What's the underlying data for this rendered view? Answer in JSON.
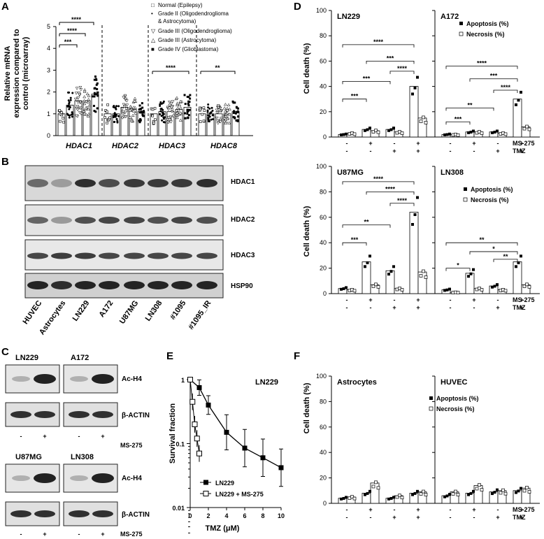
{
  "panels": {
    "A": {
      "letter": "A",
      "ylabel": [
        "Relative mRNA",
        "expression compared to",
        "control (microarray)"
      ],
      "yticks": [
        "0",
        "1",
        "2",
        "3",
        "4",
        "5"
      ],
      "genes": [
        "HDAC1",
        "HDAC2",
        "HDAC3",
        "HDAC8"
      ],
      "legend": [
        {
          "symbol": "□",
          "text": "Normal    (Epilepsy)"
        },
        {
          "symbol": "•",
          "text": "Grade II (Oligodendroglioma"
        },
        {
          "symbol": "",
          "text": "& Astrocytoma)"
        },
        {
          "symbol": "▽",
          "text": "Grade III (Oligodendroglioma)"
        },
        {
          "symbol": "△",
          "text": "Grade III (Astrocytoma)"
        },
        {
          "symbol": "■",
          "text": "Grade IV (Glioblastoma)"
        }
      ],
      "sig": [
        "****",
        "****",
        "***",
        "****",
        "**"
      ]
    },
    "B": {
      "letter": "B",
      "blots": [
        "HDAC1",
        "HDAC2",
        "HDAC3",
        "HSP90"
      ],
      "lanes": [
        "HUVEC",
        "Astrocytes",
        "LN229",
        "A172",
        "U87MG",
        "LN308",
        "#1095",
        "#1095_IR"
      ]
    },
    "C": {
      "letter": "C",
      "cells_top": [
        "LN229",
        "A172"
      ],
      "cells_bottom": [
        "U87MG",
        "LN308"
      ],
      "blots": [
        "Ac-H4",
        "β-ACTIN"
      ],
      "treatment": "MS-275",
      "signs": [
        "-",
        "+"
      ]
    },
    "D": {
      "letter": "D",
      "ylabel": "Cell death (%)",
      "yticks": [
        "0",
        "20",
        "40",
        "60",
        "80",
        "100"
      ],
      "legend": [
        "Apoptosis (%)",
        "Necrosis (%)"
      ],
      "row_labels": [
        "MS-275",
        "TMZ"
      ],
      "ms275": [
        "-",
        "+",
        "-",
        "+"
      ],
      "tmz": [
        "-",
        "-",
        "+",
        "+"
      ]
    },
    "E": {
      "letter": "E",
      "ylabel": "Survival fraction",
      "xlabel": "TMZ (μM)",
      "title": "LN229",
      "yticks": [
        "1",
        "0.1",
        "0.01"
      ],
      "xticks": [
        "0",
        "2",
        "4",
        "6",
        "8",
        "10"
      ],
      "legend": [
        "LN229",
        "LN229 + MS-275"
      ]
    },
    "F": {
      "letter": "F",
      "ylabel": "Cell death (%)",
      "yticks": [
        "0",
        "20",
        "40",
        "60",
        "80",
        "100"
      ],
      "legend": [
        "Apoptosis (%)",
        "Necrosis (%)"
      ],
      "row_labels": [
        "MS-275",
        "TMZ"
      ],
      "ms275": [
        "-",
        "+",
        "-",
        "+"
      ],
      "tmz": [
        "-",
        "-",
        "+",
        "+"
      ]
    }
  },
  "chart_data": [
    {
      "type": "bar",
      "panel": "A",
      "ylabel": "Relative mRNA expression compared to control (microarray)",
      "ylim": [
        0,
        5
      ],
      "categories": [
        "HDAC1",
        "HDAC2",
        "HDAC3",
        "HDAC8"
      ],
      "series": [
        {
          "name": "Normal (Epilepsy)",
          "values": [
            1.0,
            1.0,
            1.0,
            1.0
          ]
        },
        {
          "name": "Grade II (Oligodendroglioma & Astrocytoma)",
          "values": [
            1.4,
            1.0,
            1.1,
            1.0
          ]
        },
        {
          "name": "Grade III (Oligodendroglioma)",
          "values": [
            1.6,
            1.3,
            1.1,
            1.0
          ]
        },
        {
          "name": "Grade III (Astrocytoma)",
          "values": [
            1.6,
            1.2,
            1.2,
            1.0
          ]
        },
        {
          "name": "Grade IV (Glioblastoma)",
          "values": [
            1.9,
            1.1,
            1.3,
            1.1
          ]
        }
      ]
    },
    {
      "type": "bar",
      "panel": "D",
      "subplots": [
        {
          "title": "LN229",
          "apoptosis": [
            2,
            6,
            6,
            40
          ],
          "necrosis": [
            3,
            5,
            4,
            15
          ]
        },
        {
          "title": "A172",
          "apoptosis": [
            2,
            4,
            4,
            30
          ],
          "necrosis": [
            2,
            4,
            3,
            8
          ]
        },
        {
          "title": "U87MG",
          "apoptosis": [
            4,
            25,
            18,
            64
          ],
          "necrosis": [
            3,
            7,
            4,
            17
          ]
        },
        {
          "title": "LN308",
          "apoptosis": [
            3,
            16,
            6,
            25
          ],
          "necrosis": [
            1,
            4,
            3,
            7
          ]
        }
      ],
      "ylabel": "Cell death (%)",
      "ylim": [
        0,
        100
      ]
    },
    {
      "type": "line",
      "panel": "E",
      "title": "LN229",
      "xlabel": "TMZ (μM)",
      "ylabel": "Survival fraction",
      "yscale": "log",
      "ylim": [
        0.01,
        1
      ],
      "xlim": [
        0,
        10
      ],
      "series": [
        {
          "name": "LN229",
          "x": [
            0,
            1,
            2,
            4,
            6,
            8,
            10
          ],
          "y": [
            1.0,
            0.75,
            0.4,
            0.15,
            0.085,
            0.06,
            0.042
          ]
        },
        {
          "name": "LN229 + MS-275",
          "x": [
            0,
            0.25,
            0.5,
            0.75,
            1.0
          ],
          "y": [
            1.0,
            0.45,
            0.2,
            0.12,
            0.07
          ]
        }
      ]
    },
    {
      "type": "bar",
      "panel": "F",
      "subplots": [
        {
          "title": "Astrocytes",
          "apoptosis": [
            4,
            8,
            4,
            8
          ],
          "necrosis": [
            5,
            16,
            6,
            9
          ]
        },
        {
          "title": "HUVEC",
          "apoptosis": [
            6,
            8,
            9,
            10
          ],
          "necrosis": [
            9,
            14,
            10,
            12
          ]
        }
      ],
      "ylabel": "Cell death (%)",
      "ylim": [
        0,
        100
      ]
    }
  ]
}
